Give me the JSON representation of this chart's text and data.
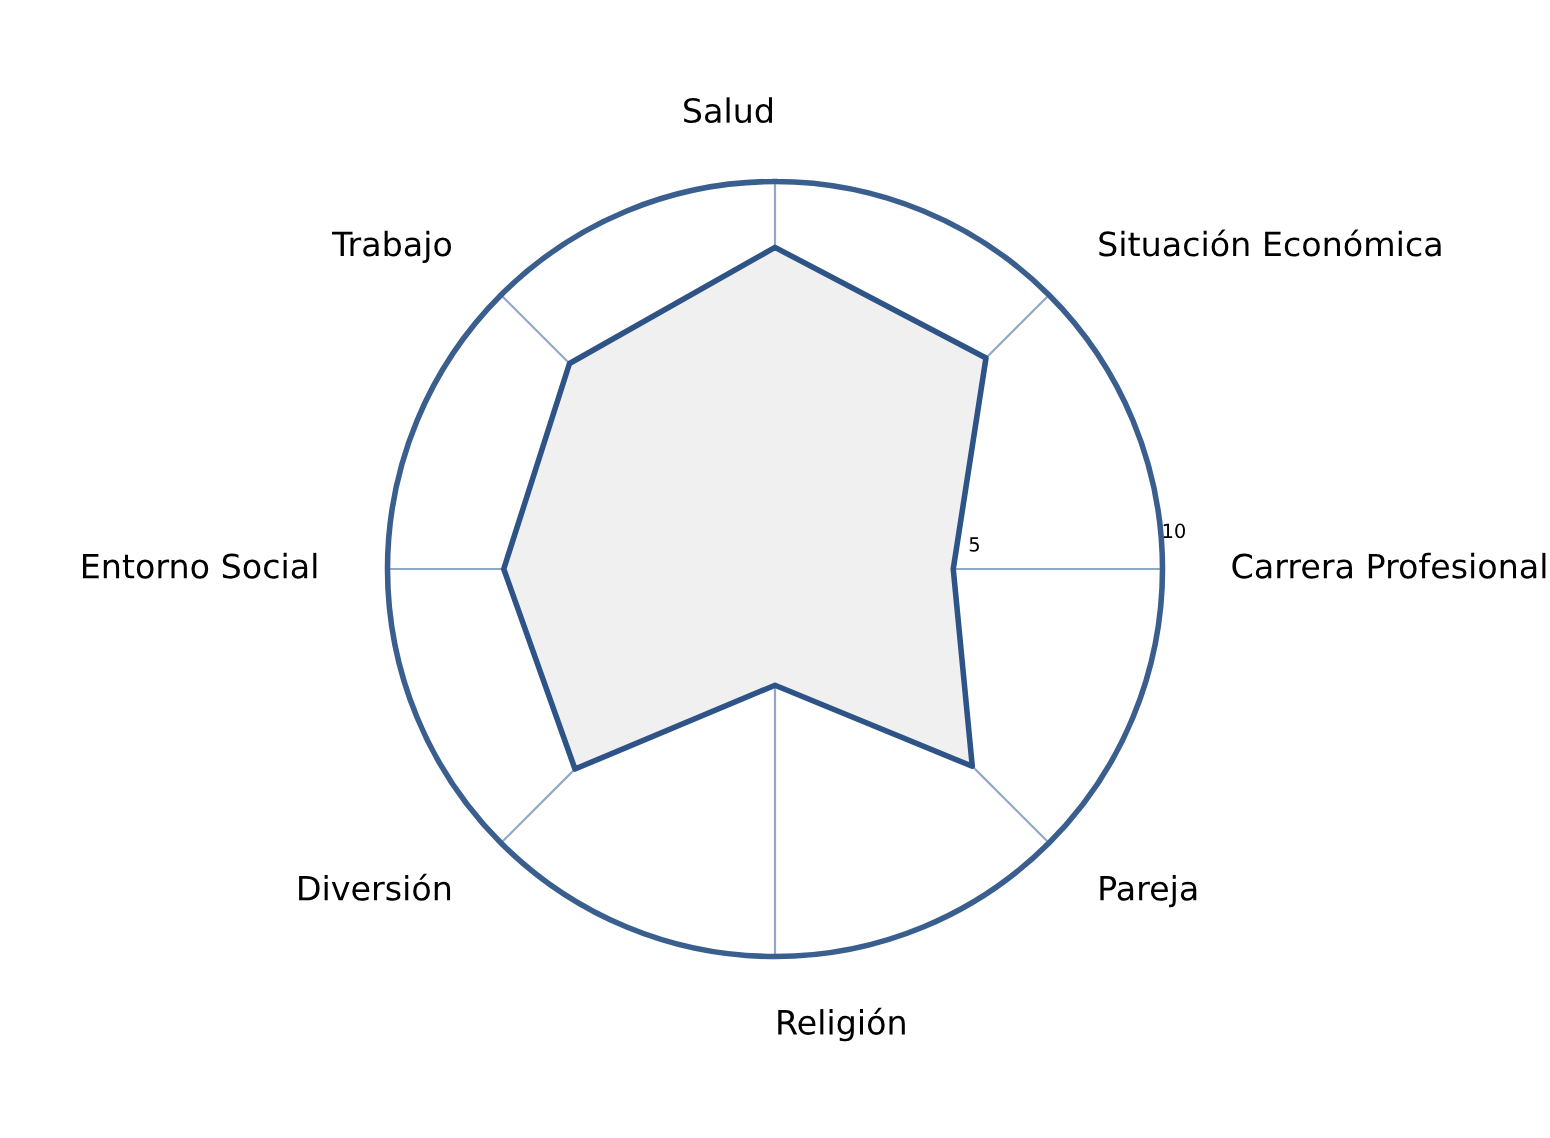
{
  "chart_data": {
    "type": "radar",
    "categories": [
      "Salud",
      "Situación Económica",
      "Carrera Profesional",
      "Pareja",
      "Religión",
      "Diversión",
      "Entorno Social",
      "Trabajo"
    ],
    "series": [
      {
        "color": "#2e5387",
        "values": [
          8.3,
          7.7,
          4.6,
          7.2,
          3.0,
          7.3,
          7.0,
          7.5
        ]
      }
    ],
    "ylim": [
      0,
      10
    ],
    "yticks": [
      5,
      10
    ],
    "grid": true,
    "marker": "none"
  }
}
